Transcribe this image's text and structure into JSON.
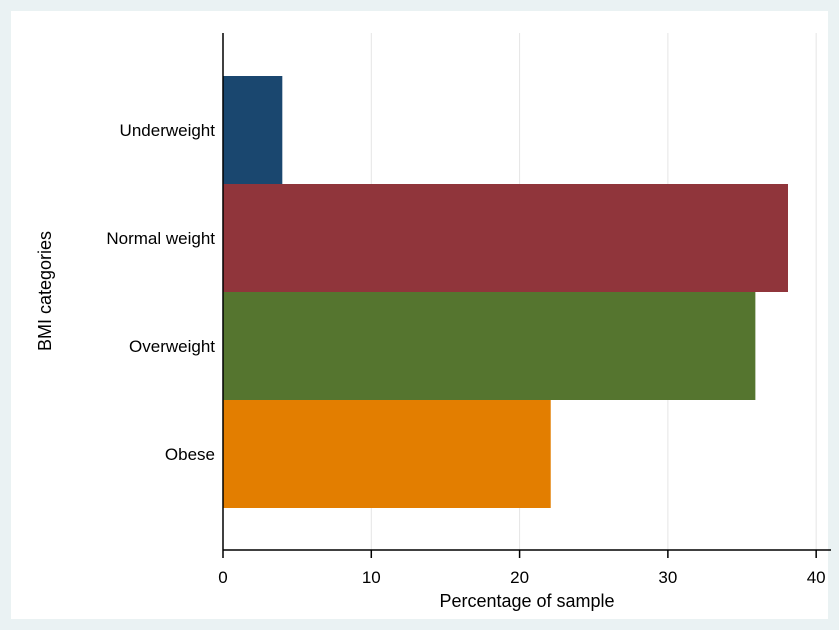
{
  "chart_data": {
    "type": "bar",
    "orientation": "horizontal",
    "categories": [
      "Underweight",
      "Normal weight",
      "Overweight",
      "Obese"
    ],
    "values": [
      4.0,
      38.1,
      35.9,
      22.1
    ],
    "colors": [
      "#1a476f",
      "#90353b",
      "#55752f",
      "#e37e00"
    ],
    "xlabel": "Percentage of sample",
    "ylabel": "BMI categories",
    "xlim": [
      0,
      41
    ],
    "xticks": [
      0,
      10,
      20,
      30,
      40
    ],
    "grid": "vertical",
    "legend": "none"
  },
  "colors": {
    "outer_background": "#eaf2f3",
    "plot_background": "#ffffff",
    "grid": "#e5e5e5",
    "axis": "#000000"
  }
}
